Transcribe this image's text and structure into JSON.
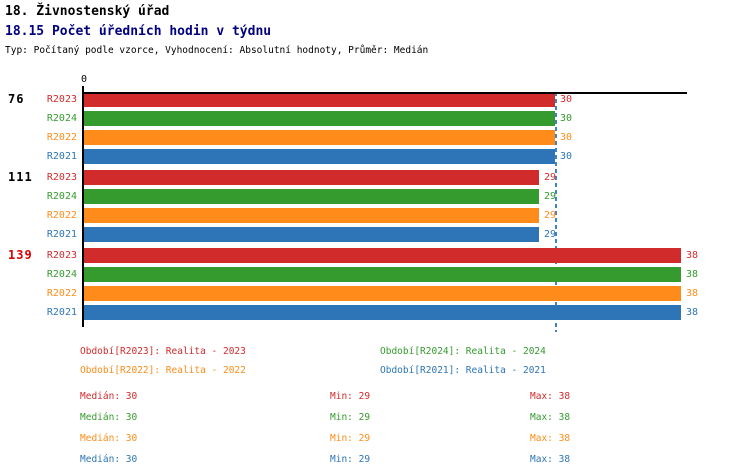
{
  "header": {
    "title1": "18. Živnostenský úřad",
    "title2": "18.15 Počet úředních hodin v týdnu",
    "subtitle": "Typ: Počítaný podle vzorce, Vyhodnocení: Absolutní hodnoty, Průměr: Medián"
  },
  "chart_data": {
    "type": "bar",
    "orientation": "horizontal",
    "axis": {
      "zero_label": "0",
      "xlim": [
        0,
        38.5
      ]
    },
    "median_line": {
      "value": 30,
      "color": "#3d85c6",
      "style": "dashed"
    },
    "series": [
      {
        "name": "R2023",
        "color": "#d22b2b"
      },
      {
        "name": "R2024",
        "color": "#359b2e"
      },
      {
        "name": "R2022",
        "color": "#ff8c1a"
      },
      {
        "name": "R2021",
        "color": "#2d75b6"
      }
    ],
    "groups": [
      {
        "label": "76",
        "label_color": "#000000",
        "values": [
          30,
          30,
          30,
          30
        ]
      },
      {
        "label": "111",
        "label_color": "#000000",
        "values": [
          29,
          29,
          29,
          29
        ]
      },
      {
        "label": "139",
        "label_color": "#dd0000",
        "values": [
          38,
          38,
          38,
          38
        ]
      }
    ]
  },
  "legend": {
    "items": [
      {
        "label": "Období[R2023]: Realita - 2023",
        "color": "#d22b2b"
      },
      {
        "label": "Období[R2024]: Realita - 2024",
        "color": "#359b2e"
      },
      {
        "label": "Období[R2022]: Realita - 2022",
        "color": "#ff8c1a"
      },
      {
        "label": "Období[R2021]: Realita - 2021",
        "color": "#2d75b6"
      }
    ]
  },
  "stats": {
    "rows": [
      {
        "median_text": "Medián: 30",
        "min_text": "Min: 29",
        "max_text": "Max: 38",
        "color": "#d22b2b"
      },
      {
        "median_text": "Medián: 30",
        "min_text": "Min: 29",
        "max_text": "Max: 38",
        "color": "#359b2e"
      },
      {
        "median_text": "Medián: 30",
        "min_text": "Min: 29",
        "max_text": "Max: 38",
        "color": "#ff8c1a"
      },
      {
        "median_text": "Medián: 30",
        "min_text": "Min: 29",
        "max_text": "Max: 38",
        "color": "#2d75b6"
      }
    ]
  }
}
